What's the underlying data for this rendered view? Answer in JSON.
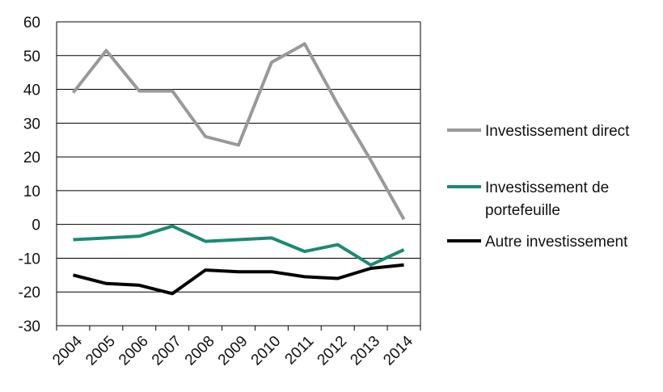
{
  "chart_data": {
    "type": "line",
    "categories": [
      "2004",
      "2005",
      "2006",
      "2007",
      "2008",
      "2009",
      "2010",
      "2011",
      "2012",
      "2013",
      "2014"
    ],
    "ylim": [
      -30,
      60
    ],
    "yticks": [
      60,
      50,
      40,
      30,
      20,
      10,
      0,
      -10,
      -20,
      -30
    ],
    "grid": true,
    "legend_position": "right",
    "series": [
      {
        "name": "Investissement direct",
        "legend_lines": [
          "Investissement direct"
        ],
        "color": "#999999",
        "values": [
          39,
          51.5,
          39.5,
          39.5,
          26,
          23.5,
          48,
          53.5,
          35.5,
          19,
          1.5
        ]
      },
      {
        "name": "Investissement de portefeuille",
        "legend_lines": [
          "Investissement de",
          "portefeuille"
        ],
        "color": "#1a8a73",
        "values": [
          -4.5,
          -4,
          -3.5,
          -0.5,
          -5,
          -4.5,
          -4,
          -8,
          -6,
          -12,
          -7.5
        ]
      },
      {
        "name": "Autre investissement",
        "legend_lines": [
          "Autre investissement"
        ],
        "color": "#000000",
        "values": [
          -15,
          -17.5,
          -18,
          -20.5,
          -13.5,
          -14,
          -14,
          -15.5,
          -16,
          -13,
          -12
        ]
      }
    ]
  }
}
